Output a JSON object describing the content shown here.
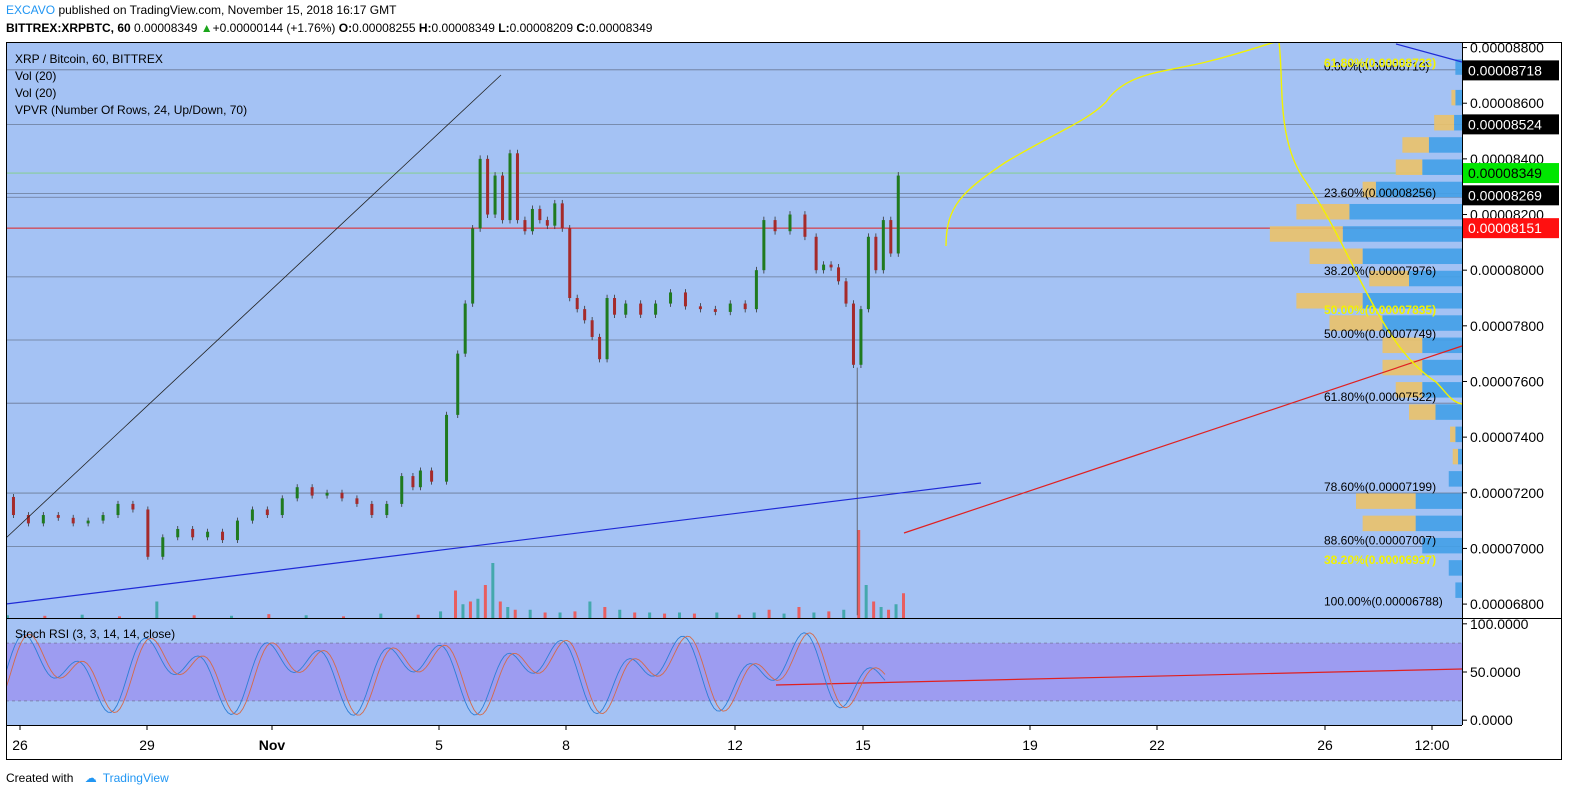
{
  "header": {
    "author": "EXCAVO",
    "published": " published on TradingView.com, November 15, 2018 16:17 GMT",
    "symbol": "BITTREX:XRPBTC, 60",
    "last": " 0.00008349 ",
    "change": "+0.00000144 (+1.76%)",
    "o_label": "O:",
    "o": "0.00008255",
    "h_label": "H:",
    "h": "0.00008349",
    "l_label": "L:",
    "l": "0.00008209",
    "c_label": "C:",
    "c": "0.00008349"
  },
  "legend": {
    "title": "XRP / Bitcoin, 60, BITTREX",
    "vol1": "Vol (20)",
    "vol2": "Vol (20)",
    "vpvr": "VPVR (Number Of Rows, 24, Up/Down, 70)",
    "stoch": "Stoch RSI (3, 3, 14, 14, close)"
  },
  "footer": {
    "created": "Created with",
    "brand": "TradingView"
  },
  "colors": {
    "background": "#a4c2f4",
    "up_candle": "#1f7a1f",
    "down_candle": "#a52a2a",
    "vol_up": "#3aa5a5",
    "vol_down": "#ef5350",
    "vpvr_up": "#42a0e8",
    "vpvr_down": "#ebc269",
    "stoch_band": "#9c95f0",
    "price_green": "#00e600",
    "price_red": "#ff1010"
  },
  "chart_data": {
    "type": "candlestick",
    "price_axis": {
      "ylim": [
        6.75e-05,
        8.82e-05
      ],
      "ticks": [
        "0.00008800",
        "0.00008600",
        "0.00008400",
        "0.00008200",
        "0.00008000",
        "0.00007800",
        "0.00007600",
        "0.00007400",
        "0.00007200",
        "0.00007000",
        "0.00006800"
      ],
      "tick_values": [
        8.8e-05,
        8.6e-05,
        8.4e-05,
        8.2e-05,
        8e-05,
        7.8e-05,
        7.6e-05,
        7.4e-05,
        7.2e-05,
        7e-05,
        6.8e-05
      ]
    },
    "price_labels": [
      {
        "text": "0.00008718",
        "value": 8.718e-05,
        "style": "black"
      },
      {
        "text": "0.00008524",
        "value": 8.524e-05,
        "style": "black"
      },
      {
        "text": "0.00008349",
        "value": 8.349e-05,
        "style": "green"
      },
      {
        "text": "0.00008269",
        "value": 8.269e-05,
        "style": "black"
      },
      {
        "text": "0.00008151",
        "value": 8.151e-05,
        "style": "red"
      }
    ],
    "x_axis": {
      "labels": [
        "26",
        "29",
        "Nov",
        "5",
        "8",
        "12",
        "15",
        "19",
        "22",
        "26",
        "12:00"
      ],
      "bold": [
        false,
        false,
        true,
        false,
        false,
        false,
        false,
        false,
        false,
        false,
        false
      ]
    },
    "fib_black": [
      {
        "text": "0.00%(0.00008710)",
        "value": 8.71e-05
      },
      {
        "text": "23.60%(0.00008256)",
        "value": 8.256e-05
      },
      {
        "text": "38.20%(0.00007976)",
        "value": 7.976e-05
      },
      {
        "text": "50.00%(0.00007749)",
        "value": 7.749e-05
      },
      {
        "text": "61.80%(0.00007522)",
        "value": 7.522e-05
      },
      {
        "text": "78.60%(0.00007199)",
        "value": 7.199e-05
      },
      {
        "text": "88.60%(0.00007007)",
        "value": 7.007e-05
      },
      {
        "text": "100.00%(0.00006788)",
        "value": 6.788e-05
      }
    ],
    "fib_yellow": [
      {
        "text": "61.80%(0.00008723)",
        "value": 8.723e-05
      },
      {
        "text": "50.00%(0.00007835)",
        "value": 7.835e-05
      },
      {
        "text": "38.20%(0.00006937)",
        "value": 6.937e-05
      }
    ],
    "horizontal_lines": [
      8.72e-05,
      8.524e-05,
      8.275e-05,
      8.262e-05,
      7.976e-05,
      7.749e-05,
      7.522e-05,
      7.199e-05,
      7.007e-05
    ],
    "red_line": 8.151e-05,
    "green_line": 8.349e-05,
    "price_path": [
      [
        0,
        7.185e-05
      ],
      [
        2,
        7.12e-05
      ],
      [
        4,
        7.09e-05
      ],
      [
        6,
        7.12e-05
      ],
      [
        8,
        7.11e-05
      ],
      [
        10,
        7.09e-05
      ],
      [
        12,
        7.1e-05
      ],
      [
        14,
        7.12e-05
      ],
      [
        16,
        7.16e-05
      ],
      [
        18,
        7.14e-05
      ],
      [
        20,
        6.97e-05
      ],
      [
        22,
        7.04e-05
      ],
      [
        24,
        7.07e-05
      ],
      [
        26,
        7.04e-05
      ],
      [
        28,
        7.06e-05
      ],
      [
        30,
        7.03e-05
      ],
      [
        32,
        7.1e-05
      ],
      [
        34,
        7.14e-05
      ],
      [
        36,
        7.12e-05
      ],
      [
        38,
        7.18e-05
      ],
      [
        40,
        7.22e-05
      ],
      [
        42,
        7.19e-05
      ],
      [
        44,
        7.2e-05
      ],
      [
        46,
        7.18e-05
      ],
      [
        48,
        7.16e-05
      ],
      [
        50,
        7.12e-05
      ],
      [
        52,
        7.16e-05
      ],
      [
        54,
        7.26e-05
      ],
      [
        55,
        7.22e-05
      ],
      [
        56,
        7.28e-05
      ],
      [
        58,
        7.24e-05
      ],
      [
        60,
        7.48e-05
      ],
      [
        61,
        7.7e-05
      ],
      [
        62,
        7.88e-05
      ],
      [
        63,
        8.15e-05
      ],
      [
        64,
        8.4e-05
      ],
      [
        65,
        8.2e-05
      ],
      [
        66,
        8.34e-05
      ],
      [
        67,
        8.18e-05
      ],
      [
        68,
        8.42e-05
      ],
      [
        69,
        8.18e-05
      ],
      [
        70,
        8.14e-05
      ],
      [
        71,
        8.22e-05
      ],
      [
        72,
        8.18e-05
      ],
      [
        73,
        8.16e-05
      ],
      [
        74,
        8.24e-05
      ],
      [
        75,
        8.15e-05
      ],
      [
        76,
        7.9e-05
      ],
      [
        77,
        7.86e-05
      ],
      [
        78,
        7.82e-05
      ],
      [
        79,
        7.76e-05
      ],
      [
        80,
        7.68e-05
      ],
      [
        81,
        7.9e-05
      ],
      [
        82,
        7.84e-05
      ],
      [
        84,
        7.88e-05
      ],
      [
        86,
        7.84e-05
      ],
      [
        88,
        7.88e-05
      ],
      [
        90,
        7.92e-05
      ],
      [
        92,
        7.87e-05
      ],
      [
        94,
        7.86e-05
      ],
      [
        96,
        7.85e-05
      ],
      [
        98,
        7.88e-05
      ],
      [
        100,
        7.86e-05
      ],
      [
        101,
        8e-05
      ],
      [
        102,
        8.18e-05
      ],
      [
        104,
        8.14e-05
      ],
      [
        106,
        8.2e-05
      ],
      [
        108,
        8.12e-05
      ],
      [
        109,
        8e-05
      ],
      [
        110,
        8.02e-05
      ],
      [
        111,
        8.01e-05
      ],
      [
        112,
        7.96e-05
      ],
      [
        113,
        7.88e-05
      ],
      [
        114,
        7.66e-05
      ],
      [
        115,
        7.86e-05
      ],
      [
        116,
        8.12e-05
      ],
      [
        117,
        8e-05
      ],
      [
        118,
        8.18e-05
      ],
      [
        119,
        8.06e-05
      ],
      [
        120,
        8.34e-05
      ]
    ],
    "x_domain": [
      0,
      195
    ],
    "volume": [
      [
        0,
        0.05
      ],
      [
        5,
        0.04
      ],
      [
        10,
        0.06
      ],
      [
        15,
        0.03
      ],
      [
        20,
        0.3
      ],
      [
        25,
        0.05
      ],
      [
        30,
        0.04
      ],
      [
        35,
        0.07
      ],
      [
        40,
        0.05
      ],
      [
        45,
        0.03
      ],
      [
        50,
        0.08
      ],
      [
        55,
        0.06
      ],
      [
        58,
        0.12
      ],
      [
        60,
        0.5
      ],
      [
        61,
        0.25
      ],
      [
        62,
        0.3
      ],
      [
        63,
        0.35
      ],
      [
        64,
        0.6
      ],
      [
        65,
        1.0
      ],
      [
        66,
        0.3
      ],
      [
        67,
        0.2
      ],
      [
        68,
        0.15
      ],
      [
        70,
        0.15
      ],
      [
        72,
        0.1
      ],
      [
        74,
        0.1
      ],
      [
        76,
        0.12
      ],
      [
        78,
        0.3
      ],
      [
        80,
        0.2
      ],
      [
        82,
        0.15
      ],
      [
        84,
        0.1
      ],
      [
        86,
        0.1
      ],
      [
        88,
        0.08
      ],
      [
        90,
        0.1
      ],
      [
        92,
        0.08
      ],
      [
        95,
        0.1
      ],
      [
        98,
        0.06
      ],
      [
        100,
        0.1
      ],
      [
        102,
        0.15
      ],
      [
        104,
        0.08
      ],
      [
        106,
        0.2
      ],
      [
        108,
        0.1
      ],
      [
        110,
        0.12
      ],
      [
        112,
        0.15
      ],
      [
        114,
        1.6
      ],
      [
        115,
        0.6
      ],
      [
        116,
        0.3
      ],
      [
        117,
        0.2
      ],
      [
        118,
        0.15
      ],
      [
        119,
        0.25
      ],
      [
        120,
        0.45
      ]
    ],
    "vpvr": [
      {
        "price": 8.73e-05,
        "up": 0.05,
        "down": 0.0
      },
      {
        "price": 8.62e-05,
        "up": 0.05,
        "down": 0.03
      },
      {
        "price": 8.53e-05,
        "up": 0.06,
        "down": 0.15
      },
      {
        "price": 8.45e-05,
        "up": 0.25,
        "down": 0.2
      },
      {
        "price": 8.37e-05,
        "up": 0.3,
        "down": 0.2
      },
      {
        "price": 8.29e-05,
        "up": 0.65,
        "down": 0.1
      },
      {
        "price": 8.21e-05,
        "up": 0.85,
        "down": 0.4
      },
      {
        "price": 8.13e-05,
        "up": 0.9,
        "down": 0.55
      },
      {
        "price": 8.05e-05,
        "up": 0.75,
        "down": 0.4
      },
      {
        "price": 7.97e-05,
        "up": 0.4,
        "down": 0.3
      },
      {
        "price": 7.89e-05,
        "up": 0.75,
        "down": 0.5
      },
      {
        "price": 7.81e-05,
        "up": 0.6,
        "down": 0.4
      },
      {
        "price": 7.73e-05,
        "up": 0.3,
        "down": 0.3
      },
      {
        "price": 7.65e-05,
        "up": 0.3,
        "down": 0.3
      },
      {
        "price": 7.57e-05,
        "up": 0.3,
        "down": 0.2
      },
      {
        "price": 7.49e-05,
        "up": 0.2,
        "down": 0.2
      },
      {
        "price": 7.41e-05,
        "up": 0.05,
        "down": 0.04
      },
      {
        "price": 7.33e-05,
        "up": 0.03,
        "down": 0.04
      },
      {
        "price": 7.25e-05,
        "up": 0.1,
        "down": 0.0
      },
      {
        "price": 7.17e-05,
        "up": 0.35,
        "down": 0.45
      },
      {
        "price": 7.09e-05,
        "up": 0.35,
        "down": 0.4
      },
      {
        "price": 7.01e-05,
        "up": 0.3,
        "down": 0.0
      },
      {
        "price": 6.93e-05,
        "up": 0.1,
        "down": 0.0
      },
      {
        "price": 6.85e-05,
        "up": 0.05,
        "down": 0.0
      }
    ],
    "stoch_axis": {
      "ylim": [
        -5,
        105
      ],
      "ticks": [
        "100.0000",
        "50.0000",
        "0.0000"
      ],
      "tick_values": [
        100,
        50,
        0
      ],
      "band": [
        20,
        80
      ]
    }
  }
}
